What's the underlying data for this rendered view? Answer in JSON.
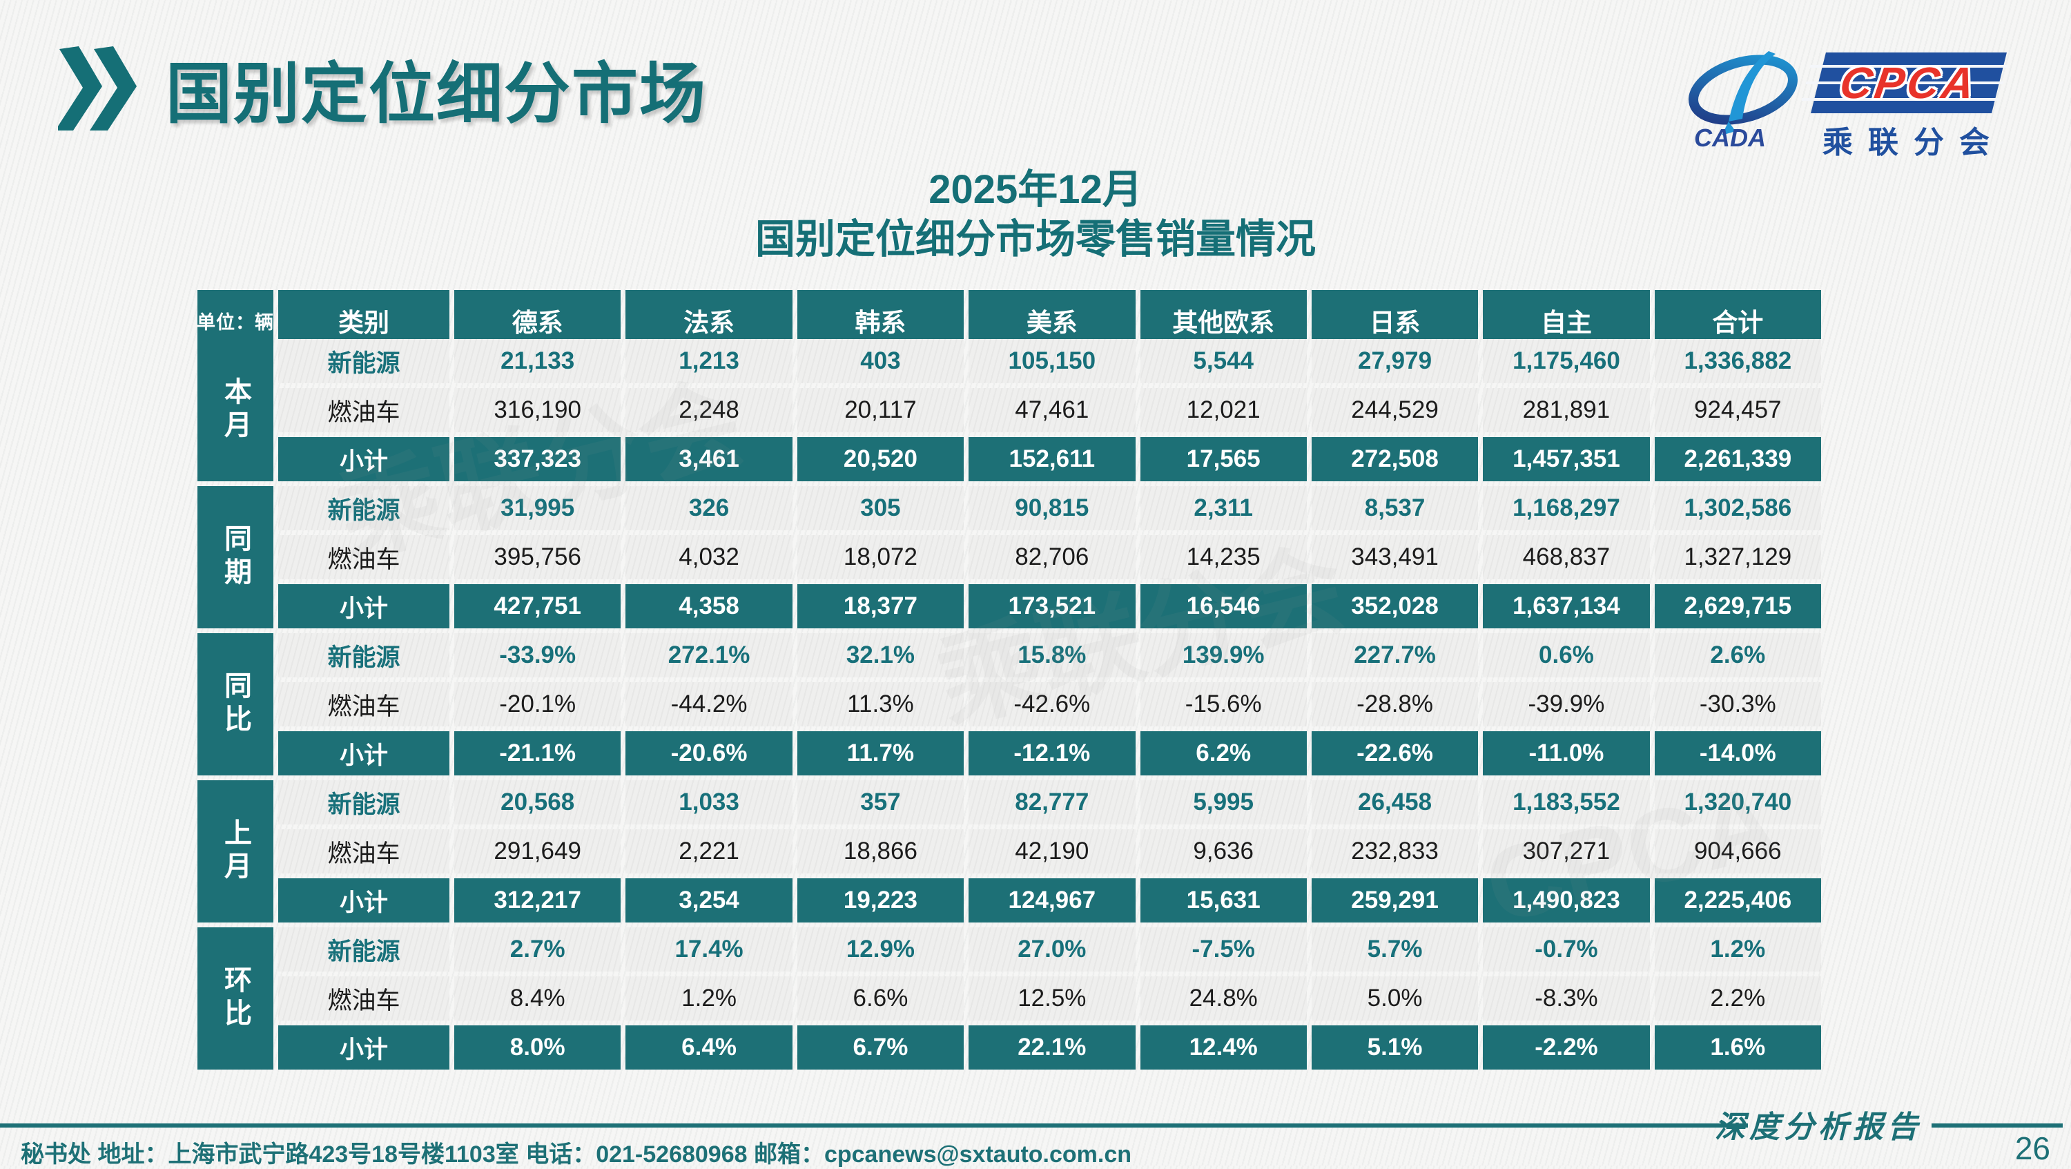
{
  "page": {
    "title": "国别定位细分市场",
    "subtitle_line1": "2025年12月",
    "subtitle_line2": "国别定位细分市场零售销量情况",
    "footer_contact": "秘书处   地址：上海市武宁路423号18号楼1103室  电话：021-52680968   邮箱：cpcanews@sxtauto.com.cn",
    "report_type_label": "深度分析报告",
    "page_number": "26"
  },
  "logo": {
    "cada_text": "CADA",
    "cpca_text": "CPCA",
    "cpca_cn_text": "乘联分会"
  },
  "colors": {
    "teal": "#1d7076",
    "teal_text": "#17707a",
    "title_teal": "#156f76",
    "logo_blue": "#20509f",
    "logo_red": "#e8332a",
    "light_row": "#ededec"
  },
  "watermark_text": "乘联分会",
  "table": {
    "unit_label": "单位：辆",
    "headers": [
      "类别",
      "德系",
      "法系",
      "韩系",
      "美系",
      "其他欧系",
      "日系",
      "自主",
      "合计"
    ],
    "groups": [
      {
        "label": "本月",
        "rows": [
          {
            "label": "新能源",
            "style": "nev",
            "values": [
              "21,133",
              "1,213",
              "403",
              "105,150",
              "5,544",
              "27,979",
              "1,175,460",
              "1,336,882"
            ]
          },
          {
            "label": "燃油车",
            "style": "fuel",
            "values": [
              "316,190",
              "2,248",
              "20,117",
              "47,461",
              "12,021",
              "244,529",
              "281,891",
              "924,457"
            ]
          },
          {
            "label": "小计",
            "style": "subtotal",
            "values": [
              "337,323",
              "3,461",
              "20,520",
              "152,611",
              "17,565",
              "272,508",
              "1,457,351",
              "2,261,339"
            ]
          }
        ]
      },
      {
        "label": "同期",
        "rows": [
          {
            "label": "新能源",
            "style": "nev",
            "values": [
              "31,995",
              "326",
              "305",
              "90,815",
              "2,311",
              "8,537",
              "1,168,297",
              "1,302,586"
            ]
          },
          {
            "label": "燃油车",
            "style": "fuel",
            "values": [
              "395,756",
              "4,032",
              "18,072",
              "82,706",
              "14,235",
              "343,491",
              "468,837",
              "1,327,129"
            ]
          },
          {
            "label": "小计",
            "style": "subtotal",
            "values": [
              "427,751",
              "4,358",
              "18,377",
              "173,521",
              "16,546",
              "352,028",
              "1,637,134",
              "2,629,715"
            ]
          }
        ]
      },
      {
        "label": "同比",
        "rows": [
          {
            "label": "新能源",
            "style": "nev",
            "values": [
              "-33.9%",
              "272.1%",
              "32.1%",
              "15.8%",
              "139.9%",
              "227.7%",
              "0.6%",
              "2.6%"
            ]
          },
          {
            "label": "燃油车",
            "style": "fuel",
            "values": [
              "-20.1%",
              "-44.2%",
              "11.3%",
              "-42.6%",
              "-15.6%",
              "-28.8%",
              "-39.9%",
              "-30.3%"
            ]
          },
          {
            "label": "小计",
            "style": "subtotal",
            "values": [
              "-21.1%",
              "-20.6%",
              "11.7%",
              "-12.1%",
              "6.2%",
              "-22.6%",
              "-11.0%",
              "-14.0%"
            ]
          }
        ]
      },
      {
        "label": "上月",
        "rows": [
          {
            "label": "新能源",
            "style": "nev",
            "values": [
              "20,568",
              "1,033",
              "357",
              "82,777",
              "5,995",
              "26,458",
              "1,183,552",
              "1,320,740"
            ]
          },
          {
            "label": "燃油车",
            "style": "fuel",
            "values": [
              "291,649",
              "2,221",
              "18,866",
              "42,190",
              "9,636",
              "232,833",
              "307,271",
              "904,666"
            ]
          },
          {
            "label": "小计",
            "style": "subtotal",
            "values": [
              "312,217",
              "3,254",
              "19,223",
              "124,967",
              "15,631",
              "259,291",
              "1,490,823",
              "2,225,406"
            ]
          }
        ]
      },
      {
        "label": "环比",
        "rows": [
          {
            "label": "新能源",
            "style": "nev",
            "values": [
              "2.7%",
              "17.4%",
              "12.9%",
              "27.0%",
              "-7.5%",
              "5.7%",
              "-0.7%",
              "1.2%"
            ]
          },
          {
            "label": "燃油车",
            "style": "fuel",
            "values": [
              "8.4%",
              "1.2%",
              "6.6%",
              "12.5%",
              "24.8%",
              "5.0%",
              "-8.3%",
              "2.2%"
            ]
          },
          {
            "label": "小计",
            "style": "subtotal",
            "values": [
              "8.0%",
              "6.4%",
              "6.7%",
              "22.1%",
              "12.4%",
              "5.1%",
              "-2.2%",
              "1.6%"
            ]
          }
        ]
      }
    ]
  }
}
